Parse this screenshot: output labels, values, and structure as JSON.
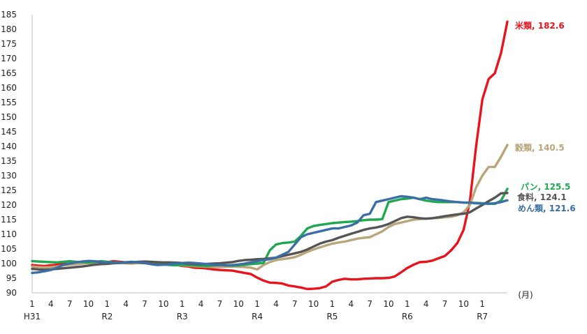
{
  "chart_data": {
    "type": "line",
    "title": "",
    "xlabel": "(月)",
    "ylabel": "",
    "ylim": [
      90,
      185
    ],
    "yticks": [
      90,
      95,
      100,
      105,
      110,
      115,
      120,
      125,
      130,
      135,
      140,
      145,
      150,
      155,
      160,
      165,
      170,
      175,
      180,
      185
    ],
    "grid": false,
    "x_month_ticks": [
      "1",
      "4",
      "7",
      "10",
      "1",
      "4",
      "7",
      "10",
      "1",
      "4",
      "7",
      "10",
      "1",
      "4",
      "7",
      "10",
      "1",
      "4",
      "7",
      "10",
      "1",
      "4",
      "7",
      "10",
      "1"
    ],
    "x_year_labels": [
      {
        "label": "H31",
        "month_index": 0
      },
      {
        "label": "R2",
        "month_index": 12
      },
      {
        "label": "R3",
        "month_index": 24
      },
      {
        "label": "R4",
        "month_index": 36
      },
      {
        "label": "R5",
        "month_index": 48
      },
      {
        "label": "R6",
        "month_index": 60
      },
      {
        "label": "R7",
        "month_index": 72
      }
    ],
    "series": [
      {
        "name": "米類",
        "end_label": "米類, 182.6",
        "color": "#e8141c",
        "values": [
          99.5,
          99.3,
          99.2,
          99.4,
          99.6,
          100.0,
          99.8,
          100.2,
          100.4,
          100.6,
          100.5,
          100.3,
          100.5,
          100.8,
          100.6,
          100.4,
          100.5,
          100.3,
          100.2,
          100.4,
          100.1,
          99.9,
          99.7,
          99.6,
          99.2,
          99.0,
          98.6,
          98.5,
          98.3,
          98.0,
          97.8,
          97.7,
          97.6,
          97.2,
          96.8,
          96.4,
          95.2,
          94.2,
          93.5,
          93.4,
          93.2,
          92.5,
          92.2,
          91.8,
          91.3,
          91.4,
          91.6,
          92.2,
          93.8,
          94.4,
          94.8,
          94.6,
          94.6,
          94.8,
          94.9,
          95.0,
          95.0,
          95.1,
          95.6,
          97.0,
          98.5,
          99.6,
          100.5,
          100.6,
          101.0,
          101.8,
          102.6,
          104.5,
          107.0,
          111.5,
          121.0,
          140.0,
          156.0,
          163.0,
          165.0,
          172.0,
          182.6
        ]
      },
      {
        "name": "穀類",
        "end_label": "穀類, 140.5",
        "color": "#b9a57a",
        "values": [
          99.0,
          98.8,
          98.7,
          98.8,
          99.0,
          99.4,
          99.6,
          99.8,
          100.0,
          100.2,
          100.1,
          99.9,
          100.0,
          100.2,
          100.3,
          100.1,
          100.0,
          100.2,
          100.1,
          99.9,
          99.9,
          99.8,
          99.7,
          99.6,
          99.4,
          99.3,
          99.1,
          99.0,
          98.9,
          98.8,
          98.8,
          98.9,
          99.0,
          98.9,
          98.8,
          98.6,
          98.0,
          99.5,
          100.5,
          101.2,
          101.5,
          101.8,
          102.2,
          103.0,
          104.0,
          104.8,
          105.5,
          106.2,
          106.8,
          107.2,
          107.5,
          108.0,
          108.5,
          108.8,
          109.0,
          110.0,
          111.0,
          112.5,
          113.5,
          114.0,
          114.5,
          115.0,
          115.2,
          115.4,
          115.5,
          115.6,
          115.8,
          116.0,
          116.5,
          117.5,
          120.0,
          126.0,
          130.0,
          133.0,
          133.0,
          136.5,
          140.5
        ]
      },
      {
        "name": "パン",
        "end_label": "パン, 125.5",
        "color": "#1fa84f",
        "values": [
          100.8,
          100.7,
          100.6,
          100.5,
          100.4,
          100.6,
          100.8,
          100.6,
          100.5,
          100.4,
          100.6,
          100.8,
          100.6,
          100.4,
          100.3,
          100.4,
          100.5,
          100.3,
          100.2,
          100.0,
          99.8,
          99.7,
          99.5,
          99.4,
          99.6,
          99.5,
          99.4,
          99.3,
          99.2,
          99.4,
          99.5,
          99.4,
          99.3,
          99.4,
          99.6,
          99.8,
          100.0,
          100.2,
          104.5,
          106.5,
          107.0,
          107.2,
          107.5,
          109.5,
          112.0,
          112.8,
          113.2,
          113.5,
          113.8,
          114.0,
          114.2,
          114.3,
          114.5,
          114.8,
          115.0,
          115.0,
          115.2,
          121.0,
          121.5,
          122.0,
          122.2,
          122.5,
          122.0,
          121.5,
          121.2,
          121.0,
          121.0,
          121.0,
          121.0,
          120.8,
          120.8,
          120.7,
          120.6,
          120.5,
          120.4,
          121.5,
          125.5
        ]
      },
      {
        "name": "食料",
        "end_label": "食料, 124.1",
        "color": "#555555",
        "values": [
          98.2,
          98.0,
          97.9,
          98.0,
          98.2,
          98.4,
          98.6,
          98.8,
          99.0,
          99.3,
          99.6,
          99.8,
          99.9,
          100.1,
          100.2,
          100.3,
          100.4,
          100.6,
          100.7,
          100.6,
          100.5,
          100.4,
          100.4,
          100.3,
          100.2,
          100.0,
          99.9,
          99.8,
          99.9,
          100.0,
          100.1,
          100.3,
          100.5,
          100.9,
          101.2,
          101.3,
          101.5,
          101.6,
          101.8,
          102.0,
          102.5,
          103.0,
          103.5,
          104.0,
          104.8,
          105.8,
          106.8,
          107.5,
          108.0,
          108.8,
          109.5,
          110.2,
          110.8,
          111.5,
          112.0,
          112.3,
          112.8,
          113.5,
          114.5,
          115.5,
          116.0,
          115.8,
          115.5,
          115.3,
          115.5,
          115.8,
          116.2,
          116.5,
          116.8,
          117.0,
          117.5,
          118.8,
          120.0,
          121.3,
          122.5,
          124.0,
          124.1
        ]
      },
      {
        "name": "めん類",
        "end_label": "めん類, 121.6",
        "color": "#3b6ea5",
        "values": [
          96.8,
          97.0,
          97.4,
          97.8,
          98.6,
          99.6,
          100.0,
          100.4,
          100.7,
          100.9,
          100.8,
          100.5,
          100.4,
          100.3,
          100.2,
          100.5,
          100.6,
          100.4,
          100.2,
          99.8,
          99.5,
          99.6,
          99.8,
          100.0,
          100.2,
          100.3,
          100.2,
          100.0,
          99.8,
          99.6,
          99.5,
          99.4,
          99.5,
          99.7,
          100.0,
          100.4,
          100.8,
          101.2,
          101.5,
          102.0,
          103.0,
          104.0,
          106.5,
          109.0,
          110.0,
          110.5,
          111.0,
          111.5,
          112.0,
          112.0,
          112.5,
          113.0,
          114.0,
          116.5,
          117.0,
          121.0,
          121.5,
          122.0,
          122.5,
          123.0,
          122.8,
          122.5,
          122.0,
          122.5,
          122.0,
          121.8,
          121.5,
          121.2,
          121.0,
          120.8,
          120.8,
          120.6,
          120.5,
          120.4,
          120.6,
          121.0,
          121.6
        ]
      }
    ]
  }
}
